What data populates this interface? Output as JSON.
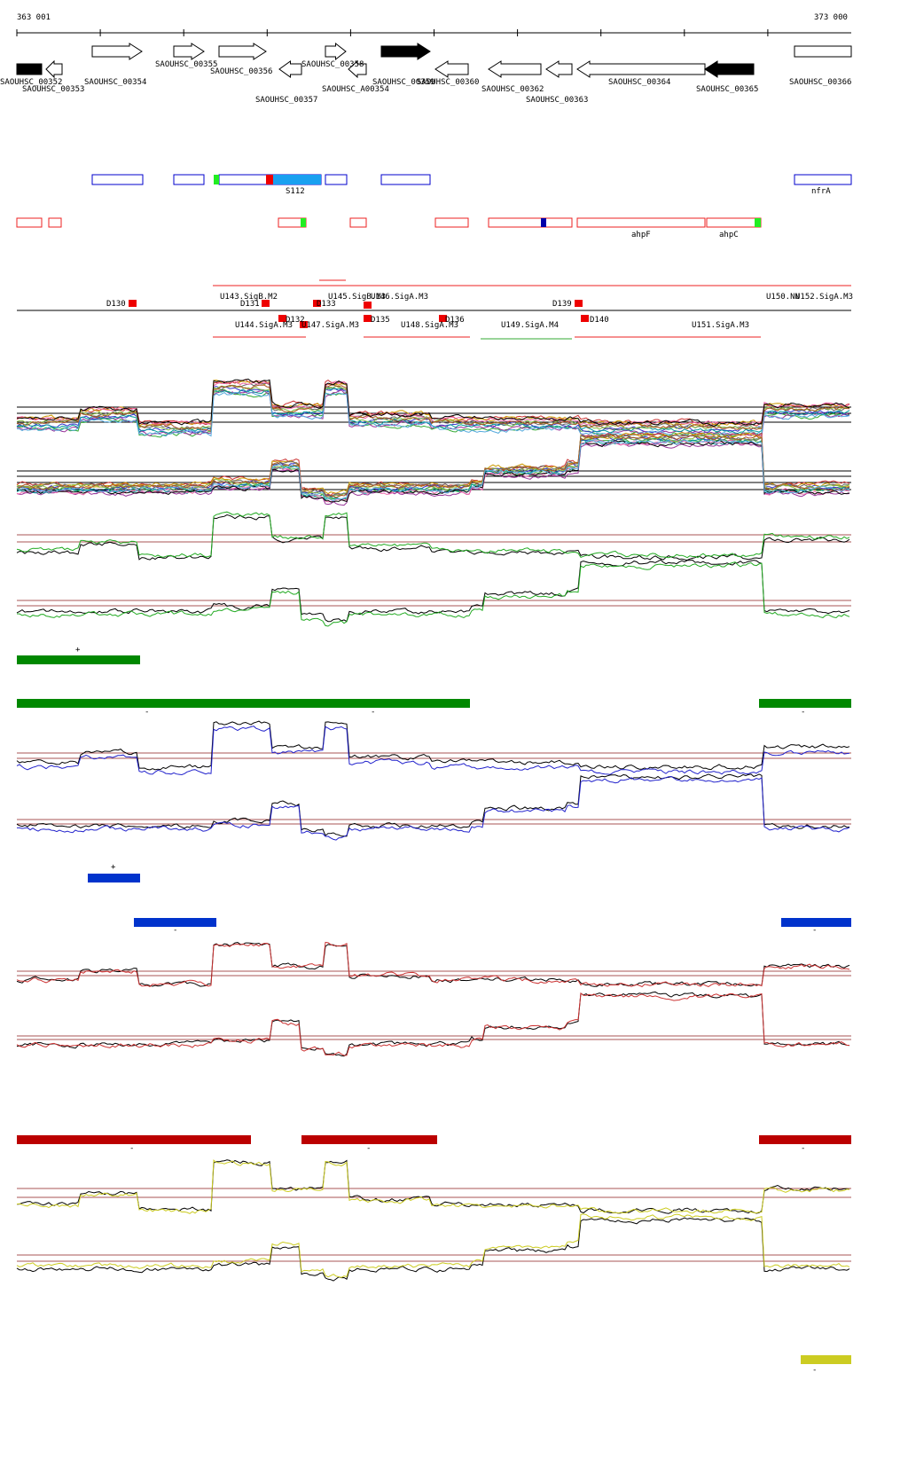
{
  "ruler": {
    "start": "363 001",
    "end": "373 000"
  },
  "genes": [
    "SAOUHSC_00352",
    "SAOUHSC_00353",
    "SAOUHSC_00354",
    "SAOUHSC_00355",
    "SAOUHSC_00356",
    "SAOUHSC_00357",
    "SAOUHSC_00358",
    "SAOUHSC_A00354",
    "SAOUHSC_00359",
    "SAOUHSC_00360",
    "SAOUHSC_00362",
    "SAOUHSC_00363",
    "SAOUHSC_00364",
    "SAOUHSC_00365",
    "SAOUHSC_00366"
  ],
  "features": [
    "S112",
    "nfrA",
    "ahpF",
    "ahpC"
  ],
  "promoters": [
    "D130",
    "U143.SigB.M2",
    "D131",
    "U145.SigB.M3",
    "U146.SigA.M3",
    "D133",
    "D139",
    "U150.NN",
    "U152.SigA.M3",
    "U144.SigA.M3",
    "D132",
    "U147.SigA.M3",
    "D135",
    "U148.SigA.M3",
    "D136",
    "U149.SigA.M4",
    "D140",
    "U151.SigA.M3"
  ],
  "strands": [
    "+",
    "-",
    "-",
    "-",
    "+",
    "-",
    "-",
    "-",
    "-",
    "-",
    "-"
  ]
}
